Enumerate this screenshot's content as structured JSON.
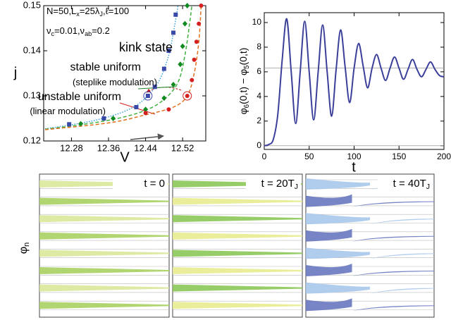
{
  "chart_data": [
    {
      "type": "scatter",
      "xlabel": "V",
      "ylabel": "j",
      "xlim": [
        12.22,
        12.57
      ],
      "ylim": [
        0.12,
        0.15
      ],
      "xticks": [
        12.28,
        12.36,
        12.44,
        12.52
      ],
      "yticks": [
        0.12,
        0.13,
        0.14,
        0.15
      ],
      "annotations": [
        {
          "parts": [
            "N=50,L",
            {
              "sub": "x"
            },
            "=25λ",
            {
              "sub": "J"
            },
            ",ℓ=100"
          ],
          "color": "#000000"
        },
        {
          "parts": [
            "ν",
            {
              "sub": "c"
            },
            "=0.01,ν",
            {
              "sub": "ab"
            },
            "=0.2"
          ],
          "color": "#000000"
        },
        {
          "parts": [
            "kink state"
          ],
          "color": "#4a5fb0"
        },
        {
          "parts": [
            "stable uniform"
          ],
          "color": "#1a8a2a"
        },
        {
          "parts": [
            "(steplike modulation)"
          ],
          "color": "#1a8a2a"
        },
        {
          "parts": [
            "unstable uniform"
          ],
          "color": "#d42020"
        },
        {
          "parts": [
            "(linear modulation)"
          ],
          "color": "#d42020"
        }
      ],
      "series": [
        {
          "color": "#3a49a8",
          "marker": "square",
          "x": [
            12.275,
            12.35,
            12.42,
            12.445,
            12.46,
            12.48,
            12.49,
            12.5,
            12.505
          ],
          "values": [
            0.1237,
            0.125,
            0.1275,
            0.13,
            0.132,
            0.136,
            0.14,
            0.144,
            0.148
          ]
        },
        {
          "color": "#3aa0e0",
          "style": "dotted",
          "x": [
            12.223,
            12.28,
            12.34,
            12.4,
            12.44,
            12.47,
            12.49,
            12.5,
            12.51
          ],
          "values": [
            0.1227,
            0.1236,
            0.1248,
            0.1268,
            0.1295,
            0.1335,
            0.139,
            0.144,
            0.15
          ]
        },
        {
          "color": "#128a22",
          "marker": "diamond",
          "x": [
            12.3,
            12.37,
            12.44,
            12.48,
            12.5,
            12.515,
            12.52,
            12.525,
            12.53
          ],
          "values": [
            0.1238,
            0.125,
            0.127,
            0.1295,
            0.1325,
            0.137,
            0.141,
            0.146,
            0.15
          ]
        },
        {
          "color": "#40b040",
          "style": "dashed",
          "x": [
            12.223,
            12.3,
            12.38,
            12.44,
            12.48,
            12.51,
            12.525,
            12.535,
            12.54
          ],
          "values": [
            0.1226,
            0.1236,
            0.125,
            0.1268,
            0.1292,
            0.133,
            0.139,
            0.146,
            0.15
          ]
        },
        {
          "color": "#d42020",
          "marker": "circle",
          "x": [
            12.44,
            12.49,
            12.53,
            12.54,
            12.545,
            12.55,
            12.555,
            12.56
          ],
          "values": [
            0.1262,
            0.127,
            0.13,
            0.1335,
            0.138,
            0.142,
            0.146,
            0.15
          ]
        },
        {
          "color": "#e07020",
          "style": "dashed",
          "x": [
            12.223,
            12.36,
            12.44,
            12.5,
            12.53,
            12.545,
            12.555,
            12.56
          ],
          "values": [
            0.1225,
            0.124,
            0.1258,
            0.1275,
            0.13,
            0.135,
            0.142,
            0.15
          ]
        }
      ]
    },
    {
      "type": "line",
      "xlabel": "t",
      "ylabel": [
        "φ",
        {
          "sub": "6"
        },
        "(0,t) − φ",
        {
          "sub": "5"
        },
        "(0,t)"
      ],
      "xlim": [
        0,
        200
      ],
      "ylim": [
        -0.3,
        10.8
      ],
      "xticks": [
        0,
        50,
        100,
        150,
        200
      ],
      "yticks": [
        0,
        2,
        4,
        6,
        8,
        10
      ],
      "hlines": [
        0,
        6.3
      ],
      "series": [
        {
          "color": "#3a3f9a",
          "x": [
            0,
            5,
            10,
            15,
            20,
            25,
            30,
            35,
            40,
            45,
            50,
            55,
            60,
            65,
            70,
            75,
            80,
            85,
            90,
            95,
            100,
            105,
            110,
            115,
            120,
            125,
            130,
            135,
            140,
            145,
            150,
            155,
            160,
            165,
            170,
            175,
            180,
            185,
            190,
            195,
            200
          ],
          "values": [
            0,
            0.1,
            0.5,
            2.5,
            7,
            10.3,
            6,
            1.8,
            6,
            10.1,
            6,
            2.1,
            6,
            9.8,
            6,
            2.4,
            6.2,
            9.4,
            6.4,
            3.5,
            6.3,
            8.3,
            6.5,
            4.7,
            6.3,
            7.4,
            6.3,
            5.3,
            6.3,
            7.2,
            6.3,
            5.4,
            6.2,
            7.0,
            6.2,
            5.6,
            6.2,
            6.8,
            6.2,
            5.7,
            5.6
          ]
        }
      ]
    }
  ],
  "panel_c": {
    "ylabel": [
      "φ",
      {
        "sub": "n"
      }
    ],
    "panels": [
      [
        "t = 0"
      ],
      [
        "t = 20T",
        {
          "sub": "J"
        }
      ],
      [
        "t = 40T",
        {
          "sub": "J"
        }
      ]
    ]
  }
}
